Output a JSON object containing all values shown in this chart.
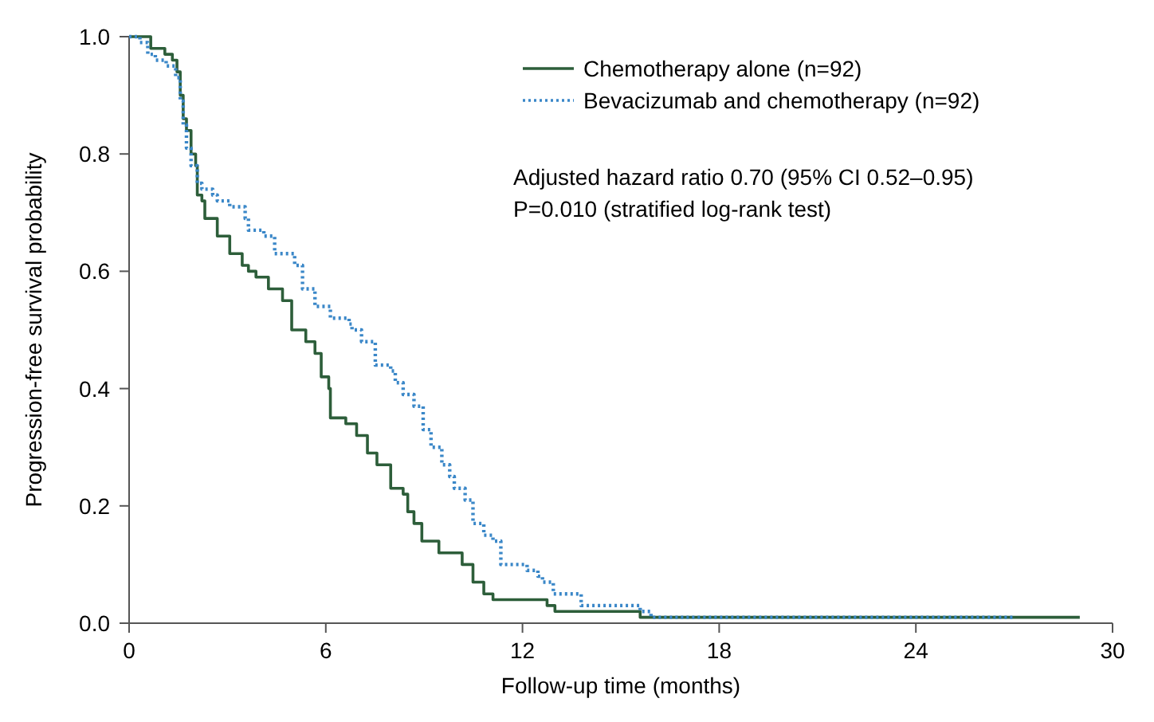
{
  "chart_data": {
    "type": "step",
    "xlabel": "Follow-up time (months)",
    "ylabel": "Progression-free survival probability",
    "xlim": [
      0,
      30
    ],
    "xticks": [
      0,
      6,
      12,
      18,
      24,
      30
    ],
    "ylim": [
      0,
      1
    ],
    "yticks": [
      {
        "value": 0,
        "label": "0.0"
      },
      {
        "value": 0.2,
        "label": "0.2"
      },
      {
        "value": 0.4,
        "label": "0.4"
      },
      {
        "value": 0.6,
        "label": "0.6"
      },
      {
        "value": 0.8,
        "label": "0.8"
      },
      {
        "value": 1,
        "label": "1.0"
      }
    ],
    "grid": false,
    "legend": "top right",
    "series": [
      {
        "name": "Chemotherapy alone (n=92)",
        "color": "#2d5e3a",
        "line_style": "solid",
        "x": [
          0,
          0.66,
          1.09,
          1.32,
          1.46,
          1.56,
          1.65,
          1.75,
          1.89,
          2.03,
          2.08,
          2.22,
          2.31,
          2.69,
          3.07,
          3.45,
          3.64,
          3.87,
          4.25,
          4.68,
          4.96,
          5.39,
          5.67,
          5.86,
          6.09,
          6.14,
          6.61,
          6.94,
          7.27,
          7.56,
          7.98,
          8.36,
          8.5,
          8.69,
          8.93,
          9.45,
          10.16,
          10.49,
          10.82,
          11.1,
          12.75,
          12.99,
          15.59,
          29
        ],
        "values": [
          1,
          0.98,
          0.97,
          0.96,
          0.94,
          0.9,
          0.86,
          0.84,
          0.8,
          0.78,
          0.73,
          0.72,
          0.69,
          0.66,
          0.63,
          0.61,
          0.6,
          0.59,
          0.57,
          0.55,
          0.5,
          0.48,
          0.46,
          0.42,
          0.4,
          0.35,
          0.34,
          0.32,
          0.29,
          0.27,
          0.23,
          0.22,
          0.19,
          0.17,
          0.14,
          0.12,
          0.1,
          0.07,
          0.05,
          0.04,
          0.03,
          0.02,
          0.01,
          0.01
        ]
      },
      {
        "name": "Bevacizumab and chemotherapy (n=92)",
        "color": "#3a87c8",
        "line_style": "dotted",
        "x": [
          0,
          0.33,
          0.57,
          0.8,
          1.13,
          1.42,
          1.56,
          1.65,
          1.75,
          1.89,
          2.08,
          2.22,
          2.55,
          2.69,
          3.07,
          3.54,
          3.64,
          4.11,
          4.44,
          5.05,
          5.29,
          5.67,
          6.14,
          6.71,
          6.8,
          7.09,
          7.51,
          7.98,
          8.12,
          8.36,
          8.69,
          8.97,
          9.21,
          9.54,
          9.78,
          9.92,
          10.25,
          10.49,
          10.82,
          11.1,
          11.34,
          12.14,
          12.47,
          12.61,
          12.94,
          13.79,
          15.59,
          15.92,
          27
        ],
        "values": [
          1,
          0.99,
          0.97,
          0.96,
          0.95,
          0.93,
          0.89,
          0.85,
          0.81,
          0.78,
          0.75,
          0.74,
          0.73,
          0.72,
          0.71,
          0.69,
          0.67,
          0.66,
          0.63,
          0.61,
          0.57,
          0.54,
          0.52,
          0.51,
          0.5,
          0.48,
          0.44,
          0.43,
          0.41,
          0.39,
          0.37,
          0.33,
          0.3,
          0.27,
          0.25,
          0.23,
          0.21,
          0.17,
          0.15,
          0.14,
          0.1,
          0.09,
          0.08,
          0.07,
          0.05,
          0.03,
          0.02,
          0.01,
          0.01
        ]
      }
    ],
    "annotations": [
      "Adjusted hazard ratio 0.70 (95% CI 0.52–0.95)",
      "P=0.010 (stratified log-rank test)"
    ]
  }
}
